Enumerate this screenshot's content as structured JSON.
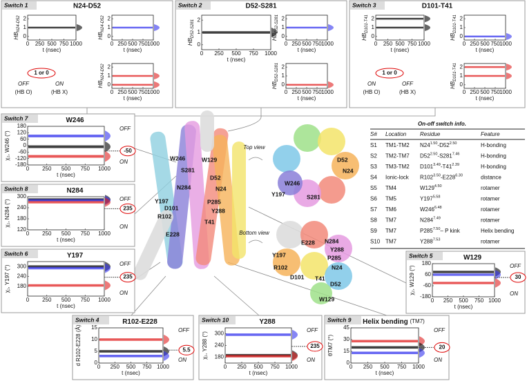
{
  "top_panels": [
    {
      "switch": "Switch 1",
      "title": "N24-D52",
      "xlabel": "t (nsec)",
      "xlim": [
        0,
        1000
      ],
      "ylim": [
        -0.4,
        2.4
      ],
      "xticks": [
        0,
        250,
        500,
        750,
        1000
      ],
      "yticks": [
        0,
        1,
        2
      ],
      "plots": [
        {
          "ylabel": "HB",
          "ylabel_sub": "N24-D52",
          "color": "#000000",
          "levels": [
            1
          ]
        },
        {
          "ylabel": "HB",
          "ylabel_sub": "N24-D52",
          "color": "#3333ee",
          "levels": [
            1
          ]
        },
        {
          "ylabel": "HB",
          "ylabel_sub": "N24-D52",
          "color": "#e02020",
          "levels": [
            1,
            0
          ]
        }
      ],
      "legend": {
        "state": "1 or 0",
        "items": [
          {
            "state": "OFF",
            "note": "(HB O)"
          },
          {
            "state": "ON",
            "note": "(HB X)"
          }
        ]
      }
    },
    {
      "switch": "Switch 2",
      "title": "D52-S281",
      "xlabel": "t (nsec)",
      "xlim": [
        0,
        1000
      ],
      "ylim": [
        -0.4,
        2.4
      ],
      "xticks": [
        0,
        250,
        500,
        750,
        1000
      ],
      "yticks": [
        0,
        1,
        2
      ],
      "plots": [
        {
          "ylabel": "HB",
          "ylabel_sub": "D52-S281",
          "color": "#000000",
          "levels": [
            1
          ]
        },
        {
          "ylabel": "HB",
          "ylabel_sub": "D52-S281",
          "color": "#3333ee",
          "levels": [
            1
          ]
        },
        {
          "ylabel": "HB",
          "ylabel_sub": "D52-S281",
          "color": "#e02020",
          "levels": [
            0
          ]
        }
      ]
    },
    {
      "switch": "Switch 3",
      "title": "D101-T41",
      "xlabel": "t (nsec)",
      "xlim": [
        0,
        1000
      ],
      "ylim": [
        -0.4,
        2.4
      ],
      "xticks": [
        0,
        250,
        500,
        750,
        1000
      ],
      "yticks": [
        0,
        1,
        2
      ],
      "plots": [
        {
          "ylabel": "HB",
          "ylabel_sub": "D101-T41",
          "color": "#000000",
          "levels": [
            2,
            1
          ]
        },
        {
          "ylabel": "HB",
          "ylabel_sub": "D101-T41",
          "color": "#3333ee",
          "levels": [
            0
          ]
        },
        {
          "ylabel": "HB",
          "ylabel_sub": "D101-T41",
          "color": "#e02020",
          "levels": [
            2,
            1
          ]
        }
      ],
      "legend": {
        "state": "1 or 0",
        "items": [
          {
            "state": "ON",
            "note": "(HB O)"
          },
          {
            "state": "OFF",
            "note": "(HB X)"
          }
        ]
      }
    }
  ],
  "side_panels": [
    {
      "switch": "Switch 7",
      "title": "W246",
      "ylabel": "χ₂, W246 (°)",
      "xlabel": "t (nsec)",
      "xlim": [
        0,
        1000
      ],
      "ylim": [
        -180,
        180
      ],
      "xticks": [
        0,
        250,
        500,
        750,
        1000
      ],
      "yticks": [
        -180,
        -120,
        -60,
        0,
        60,
        120,
        180
      ],
      "series": [
        {
          "color": "#3333ee",
          "levels": [
            90
          ]
        },
        {
          "color": "#000000",
          "levels": [
            -10
          ]
        },
        {
          "color": "#e02020",
          "levels": [
            -100
          ]
        }
      ],
      "off": "OFF",
      "on": "ON",
      "marker": -50
    },
    {
      "switch": "Switch 8",
      "title": "N284",
      "ylabel": "χ₁, N284 (°)",
      "xlabel": "t (nsec)",
      "xlim": [
        0,
        1000
      ],
      "ylim": [
        120,
        300
      ],
      "xticks": [
        0,
        250,
        500,
        750,
        1000
      ],
      "yticks": [
        120,
        180,
        240,
        300
      ],
      "series": [
        {
          "color": "#000000",
          "levels": [
            285
          ]
        },
        {
          "color": "#3333ee",
          "levels": [
            280
          ]
        },
        {
          "color": "#e02020",
          "levels": [
            270
          ]
        }
      ],
      "off": "OFF",
      "on": "ON",
      "marker": 235
    },
    {
      "switch": "Switch 6",
      "title": "Y197",
      "ylabel": "χ₁, Y197 (°)",
      "xlabel": "t (nsec)",
      "xlim": [
        0,
        1000
      ],
      "ylim": [
        120,
        330
      ],
      "xticks": [
        0,
        250,
        500,
        750,
        1000
      ],
      "yticks": [
        180,
        240,
        300
      ],
      "series": [
        {
          "color": "#000000",
          "levels": [
            300
          ]
        },
        {
          "color": "#3333ee",
          "levels": [
            290
          ]
        },
        {
          "color": "#e02020",
          "levels": [
            185
          ]
        }
      ],
      "off": "OFF",
      "on": "ON",
      "marker": 235
    },
    {
      "switch": "Switch 4",
      "title": "R102-E228",
      "ylabel": "d R102-E228 (Å)",
      "xlabel": "t (nsec)",
      "xlim": [
        0,
        1000
      ],
      "ylim": [
        0,
        15
      ],
      "xticks": [
        0,
        250,
        500,
        750,
        1000
      ],
      "yticks": [
        0,
        5,
        10,
        15
      ],
      "series": [
        {
          "color": "#e02020",
          "levels": [
            10
          ]
        },
        {
          "color": "#000000",
          "levels": [
            5
          ]
        },
        {
          "color": "#3333ee",
          "levels": [
            3
          ]
        }
      ],
      "off": "OFF",
      "on": "ON",
      "marker": 5.5
    },
    {
      "switch": "Switch 10",
      "title": "Y288",
      "ylabel": "χ₁, Y288 (°)",
      "xlabel": "t (nsec)",
      "xlim": [
        0,
        1000
      ],
      "ylim": [
        150,
        330
      ],
      "xticks": [
        0,
        250,
        500,
        750,
        1000
      ],
      "yticks": [
        180,
        240,
        300
      ],
      "series": [
        {
          "color": "#3333ee",
          "levels": [
            295
          ]
        },
        {
          "color": "#000000",
          "levels": [
            190
          ]
        },
        {
          "color": "#e02020",
          "levels": [
            185
          ]
        }
      ],
      "off": "OFF",
      "on": "ON",
      "marker": 235
    },
    {
      "switch": "Switch 9",
      "title": "Helix bending",
      "title_note": "(TM7)",
      "ylabel": "θTM7 (°)",
      "xlabel": "t (nsec)",
      "xlim": [
        0,
        1000
      ],
      "ylim": [
        0,
        45
      ],
      "xticks": [
        0,
        250,
        500,
        750,
        1000
      ],
      "yticks": [
        0,
        15,
        30,
        45
      ],
      "series": [
        {
          "color": "#e02020",
          "levels": [
            28
          ]
        },
        {
          "color": "#000000",
          "levels": [
            20
          ]
        },
        {
          "color": "#3333ee",
          "levels": [
            13
          ]
        }
      ],
      "off": "OFF",
      "on": "ON",
      "marker": 20
    },
    {
      "switch": "Switch 5",
      "title": "W129",
      "ylabel": "χ₂, W129 (°)",
      "xlabel": "t (nsec)",
      "xlim": [
        0,
        1000
      ],
      "ylim": [
        -180,
        180
      ],
      "xticks": [
        0,
        250,
        500,
        750,
        1000
      ],
      "yticks": [
        -180,
        -60,
        60,
        180
      ],
      "series": [
        {
          "color": "#000000",
          "levels": [
            90
          ]
        },
        {
          "color": "#3333ee",
          "levels": [
            60
          ]
        },
        {
          "color": "#e02020",
          "levels": [
            -30
          ]
        }
      ],
      "off": "OFF",
      "on": "ON",
      "marker": 30
    }
  ],
  "structure": {
    "center_labels": [
      "W246",
      "W129",
      "S281",
      "D52",
      "N24",
      "N284",
      "Y197",
      "P285",
      "D101",
      "Y288",
      "R102",
      "T41",
      "E228"
    ],
    "top_view": "Top view",
    "top_labels": [
      "W246",
      "D52",
      "N24",
      "Y197",
      "S281"
    ],
    "bottom_view": "Bottom view",
    "bottom_labels": [
      "N284",
      "E228",
      "Y288",
      "P285",
      "Y197",
      "N24",
      "R102",
      "D101",
      "T41",
      "D52",
      "W129"
    ]
  },
  "table": {
    "title": "On-off switch info.",
    "headers": [
      "S#",
      "Location",
      "Residue",
      "Feature"
    ],
    "rows": [
      [
        "S1",
        "TM1-TM2",
        [
          "N24",
          "1.50",
          "-D52",
          "2.50"
        ],
        "H-bonding"
      ],
      [
        "S2",
        "TM2-TM7",
        [
          "D52",
          "2.50",
          "-S281",
          "7.46"
        ],
        "H-bonding"
      ],
      [
        "S3",
        "TM3-TM2",
        [
          "D101",
          "3.49",
          "-T41",
          "2.39"
        ],
        "H-bonding"
      ],
      [
        "S4",
        "Ionic-lock",
        [
          "R102",
          "3.50",
          "-E228",
          "6.30"
        ],
        "distance"
      ],
      [
        "S5",
        "TM4",
        [
          "W129",
          "4.50"
        ],
        "rotamer"
      ],
      [
        "S6",
        "TM5",
        [
          "Y197",
          "5.58"
        ],
        "rotamer"
      ],
      [
        "S7",
        "TM6",
        [
          "W246",
          "6.48"
        ],
        "rotamer"
      ],
      [
        "S8",
        "TM7",
        [
          "N284",
          "7.49"
        ],
        "rotamer"
      ],
      [
        "S9",
        "TM7",
        [
          "P285",
          "7.50",
          "– P kink"
        ],
        "Helix bending"
      ],
      [
        "S10",
        "TM7",
        [
          "Y288",
          "7.53"
        ],
        "rotamer"
      ]
    ]
  }
}
